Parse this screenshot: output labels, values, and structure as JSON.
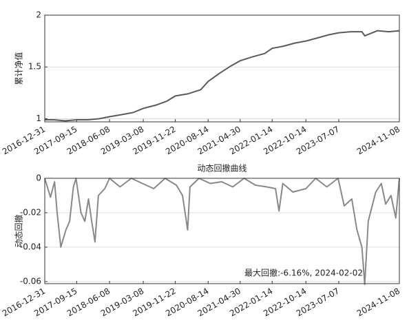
{
  "chart_data": [
    {
      "type": "line",
      "ylabel": "累计净值",
      "x": [
        "2016-12-31",
        "2017-03-15",
        "2017-06-15",
        "2017-09-15",
        "2017-12-15",
        "2018-03-15",
        "2018-06-08",
        "2018-09-15",
        "2018-12-15",
        "2019-03-08",
        "2019-06-15",
        "2019-09-15",
        "2019-11-22",
        "2020-03-01",
        "2020-06-15",
        "2020-08-14",
        "2020-11-15",
        "2021-02-15",
        "2021-04-30",
        "2021-08-15",
        "2021-11-15",
        "2022-01-14",
        "2022-04-15",
        "2022-07-15",
        "2022-10-14",
        "2023-01-15",
        "2023-04-15",
        "2023-07-07",
        "2023-10-15",
        "2024-01-10",
        "2024-02-02",
        "2024-05-15",
        "2024-08-15",
        "2024-11-08"
      ],
      "values": [
        0.99,
        0.99,
        0.98,
        0.99,
        0.99,
        1.0,
        1.02,
        1.04,
        1.06,
        1.1,
        1.13,
        1.17,
        1.22,
        1.24,
        1.28,
        1.36,
        1.44,
        1.51,
        1.56,
        1.6,
        1.63,
        1.68,
        1.7,
        1.73,
        1.75,
        1.78,
        1.81,
        1.83,
        1.84,
        1.84,
        1.8,
        1.85,
        1.84,
        1.85
      ],
      "color": "#5a5a5a",
      "xlim": [
        "2016-12-31",
        "2024-11-08"
      ],
      "xticks": [
        "2016-12-31",
        "2017-09-15",
        "2018-06-08",
        "2019-03-08",
        "2019-11-22",
        "2020-08-14",
        "2021-04-30",
        "2022-01-14",
        "2022-10-14",
        "2023-07-07",
        "2024-11-08"
      ],
      "ylim": [
        0.97,
        2
      ],
      "yticks": [
        1,
        1.5,
        2
      ],
      "grid": true
    },
    {
      "type": "line",
      "title": "动态回撤曲线",
      "ylabel": "动态回撤",
      "x": [
        "2016-12-31",
        "2017-02-15",
        "2017-03-20",
        "2017-04-10",
        "2017-05-10",
        "2017-06-20",
        "2017-07-20",
        "2017-08-20",
        "2017-09-10",
        "2017-10-20",
        "2017-11-20",
        "2017-12-20",
        "2018-01-15",
        "2018-02-10",
        "2018-03-10",
        "2018-05-01",
        "2018-06-08",
        "2018-09-01",
        "2018-12-01",
        "2019-03-01",
        "2019-06-01",
        "2019-09-01",
        "2019-12-01",
        "2020-01-20",
        "2020-03-01",
        "2020-03-20",
        "2020-06-01",
        "2020-09-01",
        "2020-12-01",
        "2021-03-01",
        "2021-06-01",
        "2021-09-01",
        "2021-12-01",
        "2022-02-10",
        "2022-03-10",
        "2022-04-10",
        "2022-07-01",
        "2022-10-14",
        "2023-01-01",
        "2023-04-01",
        "2023-07-01",
        "2023-08-20",
        "2023-10-20",
        "2023-12-01",
        "2024-01-10",
        "2024-02-02",
        "2024-03-01",
        "2024-05-01",
        "2024-06-15",
        "2024-07-20",
        "2024-09-01",
        "2024-10-10",
        "2024-11-08"
      ],
      "values": [
        0,
        -0.011,
        -0.002,
        -0.02,
        -0.04,
        -0.03,
        -0.025,
        -0.005,
        0,
        -0.02,
        -0.025,
        -0.012,
        -0.025,
        -0.037,
        -0.01,
        -0.006,
        0,
        -0.005,
        0,
        -0.003,
        -0.006,
        0,
        -0.004,
        -0.01,
        -0.03,
        -0.005,
        0,
        -0.003,
        -0.002,
        -0.005,
        0,
        -0.004,
        -0.005,
        -0.006,
        -0.019,
        -0.003,
        -0.008,
        -0.006,
        0,
        -0.005,
        0,
        -0.016,
        -0.012,
        -0.03,
        -0.04,
        -0.0616,
        -0.025,
        -0.008,
        -0.003,
        -0.015,
        -0.01,
        -0.023,
        0
      ],
      "color": "#888888",
      "xlim": [
        "2016-12-31",
        "2024-11-08"
      ],
      "xticks": [
        "2016-12-31",
        "2017-09-15",
        "2018-06-08",
        "2019-03-08",
        "2019-11-22",
        "2020-08-14",
        "2021-04-30",
        "2022-01-14",
        "2022-10-14",
        "2023-07-07",
        "2024-11-08"
      ],
      "ylim": [
        -0.0612,
        0
      ],
      "yticks": [
        -0.06,
        -0.04,
        -0.02,
        0
      ],
      "grid": true,
      "annotation": "最大回撤:-6.16%, 2024-02-02"
    }
  ]
}
